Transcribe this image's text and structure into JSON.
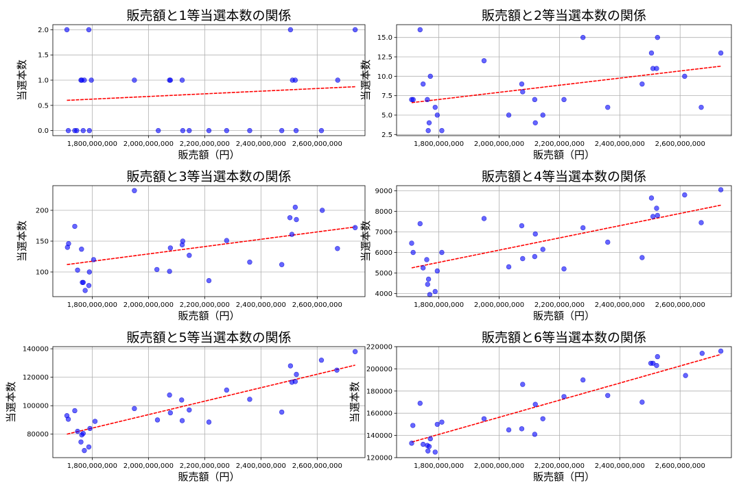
{
  "chart_data": [
    {
      "type": "scatter",
      "title": "販売額と1等当選本数の関係",
      "xlabel": "販売額（円）",
      "ylabel": "当選本数",
      "xlim": [
        1660000000,
        2770000000
      ],
      "ylim": [
        -0.1,
        2.1
      ],
      "xticks": [
        1800000000,
        2000000000,
        2200000000,
        2400000000,
        2600000000
      ],
      "xtick_labels": [
        "1,800,000,000",
        "2,000,000,000",
        "2,200,000,000",
        "2,400,000,000",
        "2,600,000,000"
      ],
      "yticks": [
        0,
        0.5,
        1,
        1.5,
        2
      ],
      "ytick_labels": [
        "0.0",
        "0.5",
        "1.0",
        "1.5",
        "2.0"
      ],
      "grid": true,
      "x": [
        1710000000,
        1715000000,
        1738000000,
        1745000000,
        1760000000,
        1763000000,
        1768000000,
        1772000000,
        1788000000,
        1790000000,
        1797000000,
        1950000000,
        2035000000,
        2075000000,
        2078000000,
        2120000000,
        2122000000,
        2145000000,
        2215000000,
        2278000000,
        2360000000,
        2474000000,
        2505000000,
        2512000000,
        2522000000,
        2525000000,
        2615000000,
        2673000000,
        2735000000
      ],
      "y": [
        2,
        0,
        0,
        0,
        1,
        1,
        0,
        1,
        2,
        0,
        1,
        1,
        0,
        1,
        1,
        1,
        0,
        0,
        0,
        0,
        0,
        0,
        2,
        1,
        1,
        0,
        0,
        1,
        2
      ],
      "trend": {
        "x": [
          1710000000,
          2735000000
        ],
        "y": [
          0.6,
          0.87
        ]
      },
      "point_color": "#0000ff",
      "trend_color": "#ff0000"
    },
    {
      "type": "scatter",
      "title": "販売額と2等当選本数の関係",
      "xlabel": "販売額（円）",
      "ylabel": "当選本数",
      "xlim": [
        1660000000,
        2770000000
      ],
      "ylim": [
        2.35,
        16.65
      ],
      "xticks": [
        1800000000,
        2000000000,
        2200000000,
        2400000000,
        2600000000
      ],
      "xtick_labels": [
        "1,800,000,000",
        "2,000,000,000",
        "2,200,000,000",
        "2,400,000,000",
        "2,600,000,000"
      ],
      "yticks": [
        2.5,
        5,
        7.5,
        10,
        12.5,
        15
      ],
      "ytick_labels": [
        "2.5",
        "5.0",
        "7.5",
        "10.0",
        "12.5",
        "15.0"
      ],
      "grid": true,
      "x": [
        1710000000,
        1715000000,
        1738000000,
        1748000000,
        1762000000,
        1765000000,
        1768000000,
        1772000000,
        1788000000,
        1795000000,
        1810000000,
        1950000000,
        2032000000,
        2075000000,
        2078000000,
        2118000000,
        2120000000,
        2145000000,
        2215000000,
        2278000000,
        2360000000,
        2474000000,
        2505000000,
        2510000000,
        2522000000,
        2525000000,
        2615000000,
        2670000000,
        2735000000
      ],
      "y": [
        7,
        7,
        16,
        9,
        7,
        3,
        4,
        10,
        6,
        5,
        3,
        12,
        5,
        9,
        8,
        7,
        4,
        5,
        7,
        15,
        6,
        9,
        13,
        11,
        11,
        15,
        10,
        6,
        13
      ],
      "trend": {
        "x": [
          1710000000,
          2735000000
        ],
        "y": [
          6.6,
          11.3
        ]
      },
      "point_color": "#0000ff",
      "trend_color": "#ff0000"
    },
    {
      "type": "scatter",
      "title": "販売額と3等当選本数の関係",
      "xlabel": "販売額（円）",
      "ylabel": "当選本数",
      "xlim": [
        1660000000,
        2770000000
      ],
      "ylim": [
        60,
        240
      ],
      "xticks": [
        1800000000,
        2000000000,
        2200000000,
        2400000000,
        2600000000
      ],
      "xtick_labels": [
        "1,800,000,000",
        "2,000,000,000",
        "2,200,000,000",
        "2,400,000,000",
        "2,600,000,000"
      ],
      "yticks": [
        100,
        150,
        200
      ],
      "ytick_labels": [
        "100",
        "150",
        "200"
      ],
      "grid": true,
      "x": [
        1712000000,
        1716000000,
        1738000000,
        1748000000,
        1762000000,
        1765000000,
        1768000000,
        1775000000,
        1788000000,
        1790000000,
        1805000000,
        1950000000,
        2030000000,
        2075000000,
        2078000000,
        2120000000,
        2122000000,
        2145000000,
        2215000000,
        2278000000,
        2360000000,
        2474000000,
        2503000000,
        2510000000,
        2522000000,
        2526000000,
        2618000000,
        2672000000,
        2735000000
      ],
      "y": [
        140,
        146,
        174,
        103,
        137,
        83,
        83,
        70,
        78,
        100,
        120,
        232,
        104,
        101,
        139,
        144,
        150,
        127,
        86,
        151,
        116,
        112,
        188,
        161,
        205,
        185,
        200,
        138,
        172
      ],
      "trend": {
        "x": [
          1710000000,
          2735000000
        ],
        "y": [
          112,
          173
        ]
      },
      "point_color": "#0000ff",
      "trend_color": "#ff0000"
    },
    {
      "type": "scatter",
      "title": "販売額と4等当選本数の関係",
      "xlabel": "販売額（円）",
      "ylabel": "当選本数",
      "xlim": [
        1660000000,
        2770000000
      ],
      "ylim": [
        3850,
        9250
      ],
      "xticks": [
        1800000000,
        2000000000,
        2200000000,
        2400000000,
        2600000000
      ],
      "xtick_labels": [
        "1,800,000,000",
        "2,000,000,000",
        "2,200,000,000",
        "2,400,000,000",
        "2,600,000,000"
      ],
      "yticks": [
        4000,
        5000,
        6000,
        7000,
        8000,
        9000
      ],
      "ytick_labels": [
        "4000",
        "5000",
        "6000",
        "7000",
        "8000",
        "9000"
      ],
      "grid": true,
      "x": [
        1710000000,
        1715000000,
        1738000000,
        1748000000,
        1760000000,
        1763000000,
        1766000000,
        1770000000,
        1788000000,
        1795000000,
        1810000000,
        1950000000,
        2032000000,
        2075000000,
        2078000000,
        2118000000,
        2120000000,
        2145000000,
        2215000000,
        2278000000,
        2360000000,
        2474000000,
        2505000000,
        2510000000,
        2522000000,
        2525000000,
        2615000000,
        2670000000,
        2735000000
      ],
      "y": [
        6450,
        6000,
        7400,
        5250,
        5650,
        4450,
        4700,
        3950,
        4100,
        5100,
        6000,
        7650,
        5300,
        7300,
        5700,
        5800,
        6900,
        6150,
        5200,
        7200,
        6500,
        5750,
        8650,
        7750,
        8150,
        7800,
        8800,
        7450,
        9050
      ],
      "trend": {
        "x": [
          1710000000,
          2735000000
        ],
        "y": [
          5250,
          8300
        ]
      },
      "point_color": "#0000ff",
      "trend_color": "#ff0000"
    },
    {
      "type": "scatter",
      "title": "販売額と5等当選本数の関係",
      "xlabel": "販売額（円）",
      "ylabel": "当選本数",
      "xlim": [
        1660000000,
        2770000000
      ],
      "ylim": [
        63500,
        141500
      ],
      "xticks": [
        1800000000,
        2000000000,
        2200000000,
        2400000000,
        2600000000
      ],
      "xtick_labels": [
        "1,800,000,000",
        "2,000,000,000",
        "2,200,000,000",
        "2,400,000,000",
        "2,600,000,000"
      ],
      "yticks": [
        80000,
        100000,
        120000,
        140000
      ],
      "ytick_labels": [
        "80000",
        "100000",
        "120000",
        "140000"
      ],
      "grid": true,
      "x": [
        1710000000,
        1715000000,
        1738000000,
        1748000000,
        1760000000,
        1763000000,
        1768000000,
        1772000000,
        1788000000,
        1792000000,
        1810000000,
        1950000000,
        2032000000,
        2075000000,
        2078000000,
        2118000000,
        2120000000,
        2145000000,
        2215000000,
        2278000000,
        2360000000,
        2474000000,
        2505000000,
        2510000000,
        2522000000,
        2526000000,
        2615000000,
        2670000000,
        2735000000
      ],
      "y": [
        93000,
        90500,
        96500,
        82000,
        74500,
        79500,
        80500,
        68500,
        71000,
        84000,
        89000,
        98000,
        90000,
        107500,
        95000,
        104000,
        89500,
        97000,
        88500,
        111000,
        104500,
        95500,
        128000,
        116500,
        117000,
        122000,
        132000,
        125000,
        138000
      ],
      "trend": {
        "x": [
          1710000000,
          2735000000
        ],
        "y": [
          80000,
          128500
        ]
      },
      "point_color": "#0000ff",
      "trend_color": "#ff0000"
    },
    {
      "type": "scatter",
      "title": "販売額と6等当選本数の関係",
      "xlabel": "販売額（円）",
      "ylabel": "当選本数",
      "xlim": [
        1660000000,
        2770000000
      ],
      "ylim": [
        120000,
        220000
      ],
      "xticks": [
        1800000000,
        2000000000,
        2200000000,
        2400000000,
        2600000000
      ],
      "xtick_labels": [
        "1,800,000,000",
        "2,000,000,000",
        "2,200,000,000",
        "2,400,000,000",
        "2,600,000,000"
      ],
      "yticks": [
        120000,
        140000,
        160000,
        180000,
        200000,
        220000
      ],
      "ytick_labels": [
        "120000",
        "140000",
        "160000",
        "180000",
        "200000",
        "220000"
      ],
      "grid": true,
      "x": [
        1710000000,
        1714000000,
        1738000000,
        1748000000,
        1762000000,
        1764000000,
        1768000000,
        1772000000,
        1788000000,
        1795000000,
        1810000000,
        1950000000,
        2032000000,
        2075000000,
        2078000000,
        2118000000,
        2120000000,
        2145000000,
        2215000000,
        2278000000,
        2360000000,
        2474000000,
        2503000000,
        2510000000,
        2522000000,
        2525000000,
        2618000000,
        2673000000,
        2735000000
      ],
      "y": [
        133000,
        149000,
        169000,
        132000,
        131000,
        126000,
        130000,
        137000,
        125000,
        150000,
        152000,
        155000,
        145000,
        146000,
        186000,
        141000,
        168000,
        155000,
        175000,
        190000,
        176000,
        170000,
        205000,
        205000,
        203000,
        211000,
        194000,
        214000,
        216000
      ],
      "trend": {
        "x": [
          1710000000,
          2735000000
        ],
        "y": [
          134000,
          213000
        ]
      },
      "point_color": "#0000ff",
      "trend_color": "#ff0000"
    }
  ]
}
